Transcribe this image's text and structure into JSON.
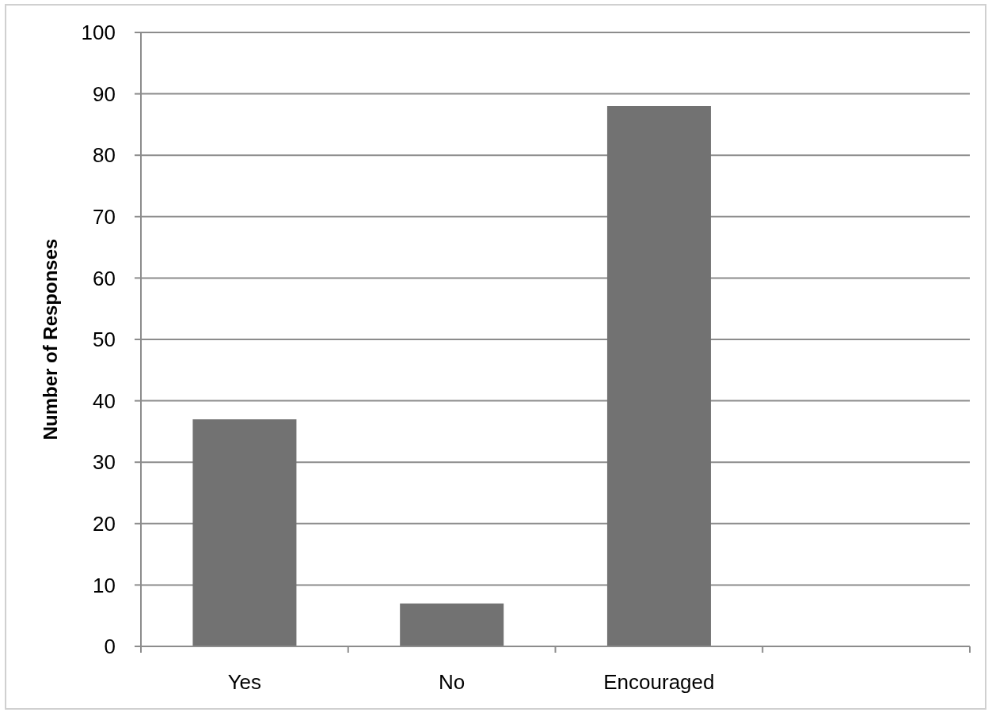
{
  "chart_data": {
    "type": "bar",
    "ylabel": "Number of Responses",
    "categories": [
      "Yes",
      "No",
      "Encouraged",
      null
    ],
    "values": [
      37,
      7,
      88,
      null
    ],
    "color": "#727272",
    "ylim": [
      0,
      100
    ],
    "yticks": [
      0,
      10,
      20,
      30,
      40,
      50,
      60,
      70,
      80,
      90,
      100
    ],
    "grid": "y"
  }
}
